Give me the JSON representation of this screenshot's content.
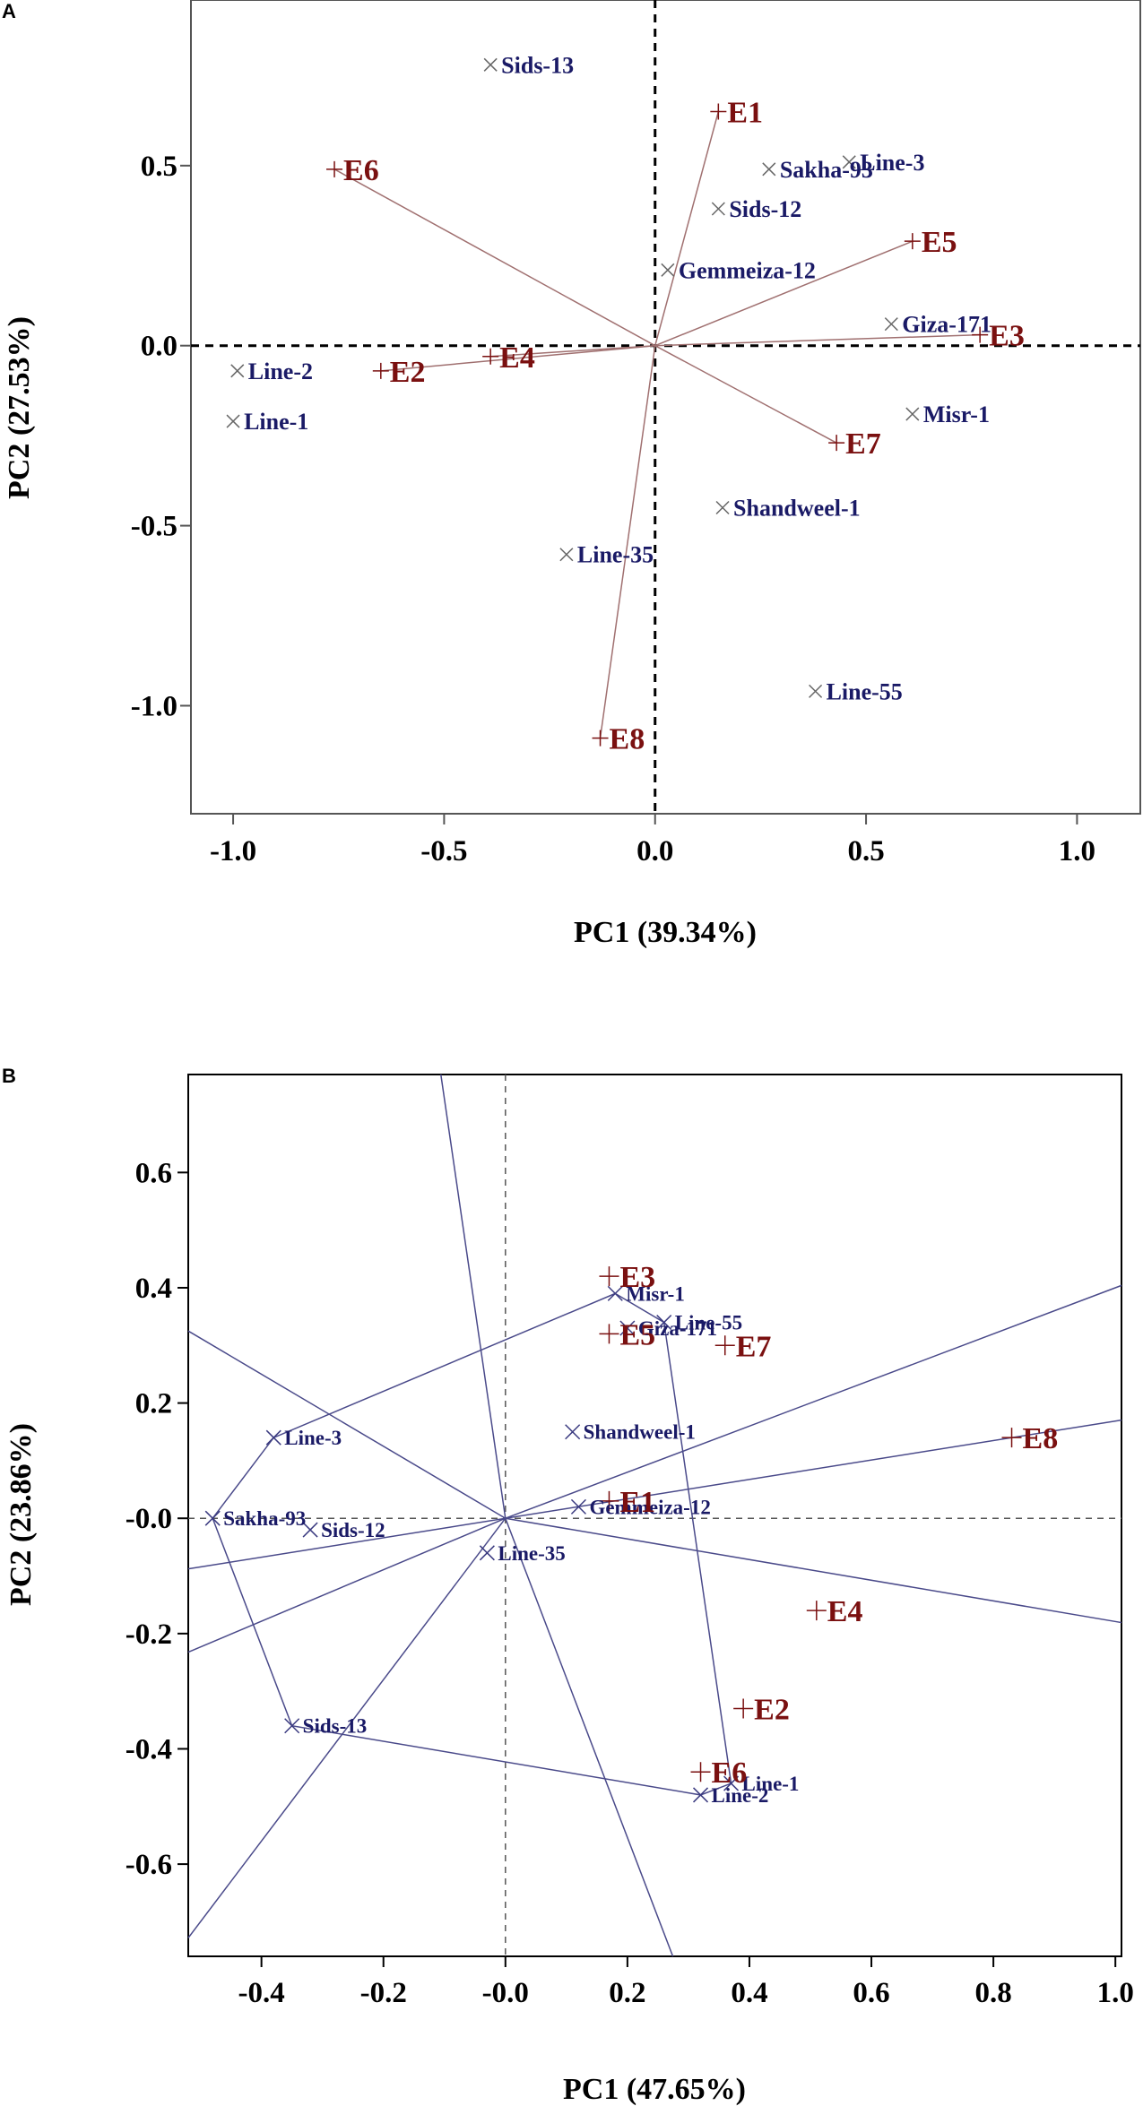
{
  "chart_data": [
    {
      "panel": "A",
      "type": "scatter",
      "subtype": "biplot",
      "xlabel": "PC1 (39.34%)",
      "ylabel": "PC2 (27.53%)",
      "xlim": [
        -1.1,
        1.15
      ],
      "ylim": [
        -1.3,
        0.96
      ],
      "xticks": [
        -1.0,
        -0.5,
        0.0,
        0.5,
        1.0
      ],
      "xtick_labels": [
        "-1.0",
        "-0.5",
        "0.0",
        "0.5",
        "1.0"
      ],
      "yticks": [
        -1.0,
        -0.5,
        0.0,
        0.5
      ],
      "ytick_labels": [
        "-1.0",
        "-0.5",
        "0.0",
        "0.5"
      ],
      "reference_lines": "dashed at x=0 and y=0",
      "genotypes": [
        {
          "name": "Sids-13",
          "x": -0.39,
          "y": 0.78
        },
        {
          "name": "Line-3",
          "x": 0.46,
          "y": 0.51
        },
        {
          "name": "Sakha-93",
          "x": 0.27,
          "y": 0.49
        },
        {
          "name": "Sids-12",
          "x": 0.15,
          "y": 0.38
        },
        {
          "name": "Gemmeiza-12",
          "x": 0.03,
          "y": 0.21
        },
        {
          "name": "Giza-171",
          "x": 0.56,
          "y": 0.06
        },
        {
          "name": "Line-2",
          "x": -0.99,
          "y": -0.07
        },
        {
          "name": "Line-1",
          "x": -1.0,
          "y": -0.21
        },
        {
          "name": "Misr-1",
          "x": 0.61,
          "y": -0.19
        },
        {
          "name": "Shandweel-1",
          "x": 0.16,
          "y": -0.45
        },
        {
          "name": "Line-35",
          "x": -0.21,
          "y": -0.58
        },
        {
          "name": "Line-55",
          "x": 0.38,
          "y": -0.96
        }
      ],
      "environments": [
        {
          "name": "E1",
          "x": 0.15,
          "y": 0.65
        },
        {
          "name": "E6",
          "x": -0.76,
          "y": 0.49
        },
        {
          "name": "E5",
          "x": 0.61,
          "y": 0.29
        },
        {
          "name": "E3",
          "x": 0.77,
          "y": 0.03
        },
        {
          "name": "E4",
          "x": -0.39,
          "y": -0.03
        },
        {
          "name": "E2",
          "x": -0.65,
          "y": -0.07
        },
        {
          "name": "E7",
          "x": 0.43,
          "y": -0.27
        },
        {
          "name": "E8",
          "x": -0.13,
          "y": -1.09
        }
      ]
    },
    {
      "panel": "B",
      "type": "scatter",
      "subtype": "which-won-where biplot",
      "xlabel": "PC1 (47.65%)",
      "ylabel": "PC2 (23.86%)",
      "xlim": [
        -0.52,
        1.01
      ],
      "ylim": [
        -0.76,
        0.77
      ],
      "xticks": [
        -0.4,
        -0.2,
        0.0,
        0.2,
        0.4,
        0.6,
        0.8,
        1.0
      ],
      "xtick_labels": [
        "-0.4",
        "-0.2",
        "-0.0",
        "0.2",
        "0.4",
        "0.6",
        "0.8",
        "1.0"
      ],
      "yticks": [
        0.6,
        0.4,
        0.2,
        0.0,
        -0.2,
        -0.4,
        -0.6
      ],
      "ytick_labels": [
        "0.6",
        "0.4",
        "0.2",
        "-0.0",
        "-0.2",
        "-0.4",
        "-0.6"
      ],
      "reference_lines": "dashed at x=0 and y=0",
      "genotypes": [
        {
          "name": "Misr-1",
          "x": 0.18,
          "y": 0.39
        },
        {
          "name": "Line-55",
          "x": 0.26,
          "y": 0.34
        },
        {
          "name": "Giza-171",
          "x": 0.2,
          "y": 0.33
        },
        {
          "name": "Shandweel-1",
          "x": 0.11,
          "y": 0.15
        },
        {
          "name": "Line-3",
          "x": -0.38,
          "y": 0.14
        },
        {
          "name": "Sakha-93",
          "x": -0.48,
          "y": 0.0
        },
        {
          "name": "Sids-12",
          "x": -0.32,
          "y": -0.02
        },
        {
          "name": "Gemmeiza-12",
          "x": 0.12,
          "y": 0.02
        },
        {
          "name": "Line-35",
          "x": -0.03,
          "y": -0.06
        },
        {
          "name": "Sids-13",
          "x": -0.35,
          "y": -0.36
        },
        {
          "name": "Line-1",
          "x": 0.37,
          "y": -0.46
        },
        {
          "name": "Line-2",
          "x": 0.32,
          "y": -0.48
        }
      ],
      "environments": [
        {
          "name": "E3",
          "x": 0.17,
          "y": 0.42
        },
        {
          "name": "E5",
          "x": 0.17,
          "y": 0.32
        },
        {
          "name": "E7",
          "x": 0.36,
          "y": 0.3
        },
        {
          "name": "E8",
          "x": 0.83,
          "y": 0.14
        },
        {
          "name": "E1",
          "x": 0.17,
          "y": 0.03
        },
        {
          "name": "E4",
          "x": 0.51,
          "y": -0.16
        },
        {
          "name": "E2",
          "x": 0.39,
          "y": -0.33
        },
        {
          "name": "E6",
          "x": 0.32,
          "y": -0.44
        }
      ],
      "polygon": [
        "Misr-1",
        "Line-55",
        "Line-1",
        "Line-2",
        "Sids-13",
        "Sakha-93",
        "Line-3"
      ]
    }
  ]
}
